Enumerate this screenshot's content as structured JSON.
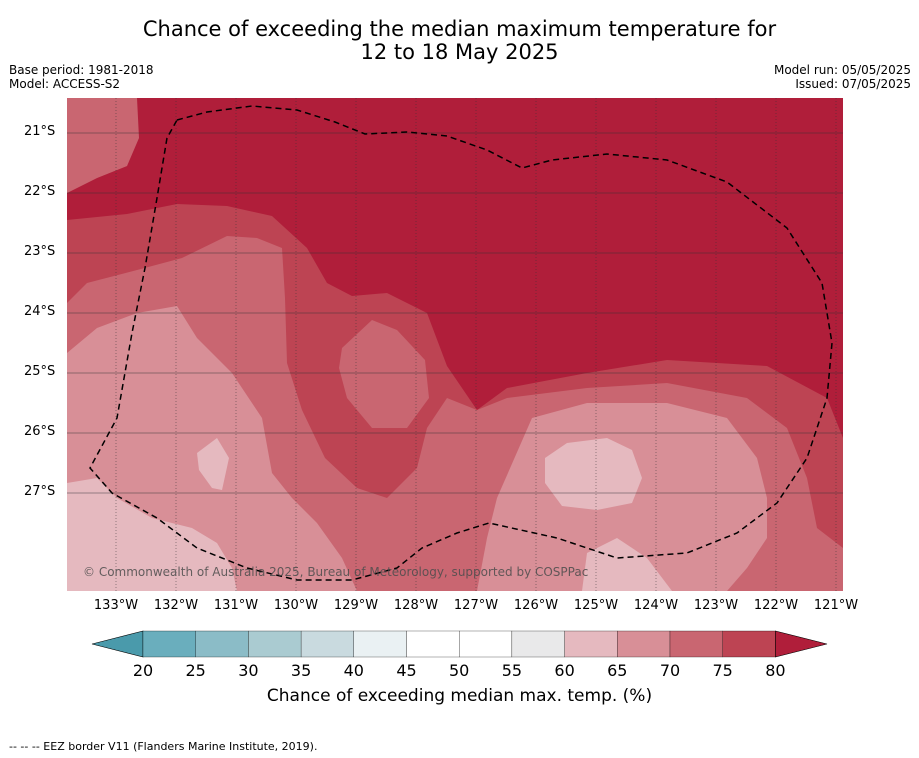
{
  "title_line1": "Chance of exceeding the median maximum temperature for",
  "title_line2": "12 to 18 May 2025",
  "base_period": "Base period: 1981-2018",
  "model": "Model: ACCESS-S2",
  "model_run": "Model run: 05/05/2025",
  "issued": "Issued: 07/05/2025",
  "latitude_labels": [
    "21°S",
    "22°S",
    "23°S",
    "24°S",
    "25°S",
    "26°S",
    "27°S"
  ],
  "longitude_labels": [
    "133°W",
    "132°W",
    "131°W",
    "130°W",
    "129°W",
    "128°W",
    "127°W",
    "126°W",
    "125°W",
    "124°W",
    "123°W",
    "122°W",
    "121°W"
  ],
  "copyright": "© Commonwealth of Australia 2025, Bureau of Meteorology, supported by COSPPac",
  "colorbar": {
    "ticks": [
      "20",
      "25",
      "30",
      "35",
      "40",
      "45",
      "50",
      "55",
      "60",
      "65",
      "70",
      "75",
      "80"
    ],
    "label": "Chance of exceeding median max. temp. (%)",
    "colors": {
      "under": "#4a9aab",
      "bins": [
        "#6aaebd",
        "#8bbcc7",
        "#aacbd1",
        "#c9dadf",
        "#eaf1f3",
        "#ffffff",
        "#ffffff",
        "#e9e9ea",
        "#e5b9bf",
        "#d88f97",
        "#c96671",
        "#bd4453"
      ],
      "over": "#b01e3a"
    }
  },
  "footer_legend": "--  --  -- EEZ border V11 (Flanders Marine Institute, 2019).",
  "map_colors": {
    "gt80": "#b01e3a",
    "c75_80": "#bd4453",
    "c70_75": "#c96671",
    "c65_70": "#d88f97",
    "c60_65": "#e5b9bf"
  }
}
